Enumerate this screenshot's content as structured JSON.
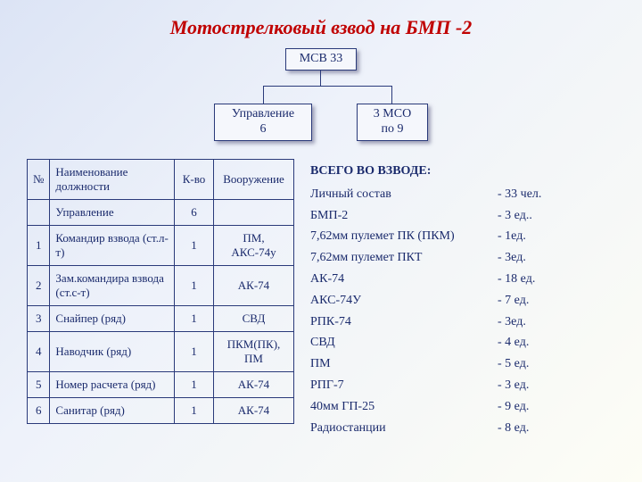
{
  "title": "Мотострелковый взвод на БМП -2",
  "org": {
    "top": "МСВ 33",
    "left_l1": "Управление",
    "left_l2": "6",
    "right_l1": "3 МСО",
    "right_l2": "по 9"
  },
  "table": {
    "h_num": "№",
    "h_name_l1": "Наименование",
    "h_name_l2": "должности",
    "h_qty": "К-во",
    "h_arm": "Вооружение",
    "sub_name": "Управление",
    "sub_qty": "6",
    "rows": [
      {
        "n": "1",
        "name": "Командир взвода (ст.л-т)",
        "qty": "1",
        "arm": "ПМ, АКС-74у"
      },
      {
        "n": "2",
        "name": "Зам.командира взвода (ст.с-т)",
        "qty": "1",
        "arm": "АК-74"
      },
      {
        "n": "3",
        "name": "Снайпер (ряд)",
        "qty": "1",
        "arm": "СВД"
      },
      {
        "n": "4",
        "name": "Наводчик (ряд)",
        "qty": "1",
        "arm": "ПКМ(ПК), ПМ"
      },
      {
        "n": "5",
        "name": "Номер расчета (ряд)",
        "qty": "1",
        "arm": "АК-74"
      },
      {
        "n": "6",
        "name": "Санитар (ряд)",
        "qty": "1",
        "arm": "АК-74"
      }
    ]
  },
  "summary": {
    "title": "ВСЕГО ВО ВЗВОДЕ:",
    "items": [
      {
        "label": "Личный состав",
        "val": "- 33 чел."
      },
      {
        "label": "БМП-2",
        "val": "-  3 ед.."
      },
      {
        "label": "7,62мм пулемет ПК (ПКМ)",
        "val": "-  1ед."
      },
      {
        "label": "7,62мм пулемет ПКТ",
        "val": "-  3ед."
      },
      {
        "label": "АК-74",
        "val": "- 18 ед."
      },
      {
        "label": "АКС-74У",
        "val": "-  7 ед."
      },
      {
        "label": "РПК-74",
        "val": "-  3ед."
      },
      {
        "label": "СВД",
        "val": "-  4 ед."
      },
      {
        "label": "ПМ",
        "val": "-  5 ед."
      },
      {
        "label": "РПГ-7",
        "val": "-  3 ед."
      },
      {
        "label": "40мм ГП-25",
        "val": "-  9 ед."
      },
      {
        "label": "Радиостанции",
        "val": "-  8 ед."
      }
    ]
  }
}
